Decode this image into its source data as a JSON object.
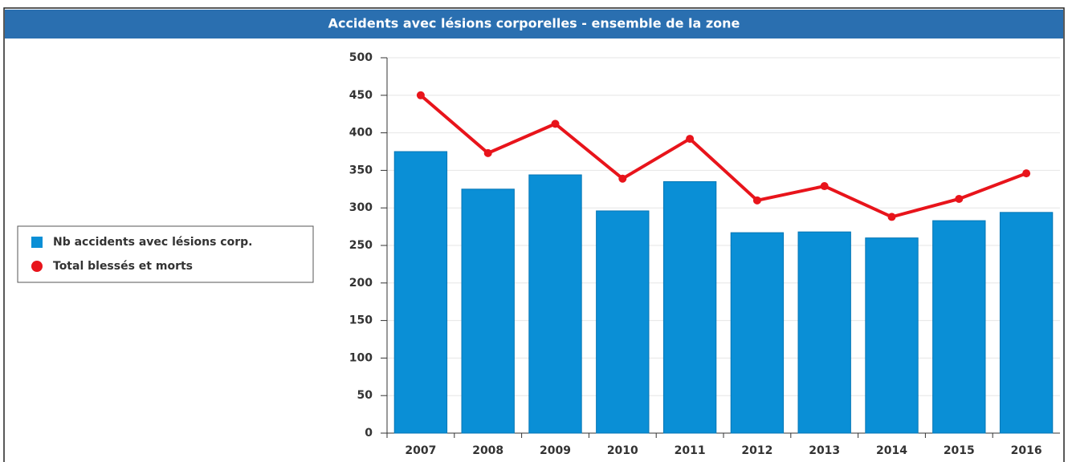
{
  "chart_data": {
    "type": "bar",
    "title": "Accidents avec lésions corporelles - ensemble de la zone",
    "categories": [
      "2007",
      "2008",
      "2009",
      "2010",
      "2011",
      "2012",
      "2013",
      "2014",
      "2015",
      "2016"
    ],
    "series": [
      {
        "name": "Nb accidents avec lésions corp.",
        "type": "bar",
        "color": "#0a8fd6",
        "values": [
          375,
          325,
          344,
          296,
          335,
          267,
          268,
          260,
          283,
          294
        ]
      },
      {
        "name": "Total blessés et morts",
        "type": "line",
        "color": "#e8141b",
        "values": [
          450,
          373,
          412,
          339,
          392,
          310,
          329,
          288,
          312,
          346
        ]
      }
    ],
    "ylim": [
      0,
      500
    ],
    "yticks": [
      0,
      50,
      100,
      150,
      200,
      250,
      300,
      350,
      400,
      450,
      500
    ],
    "grid": true,
    "legend": "left"
  }
}
